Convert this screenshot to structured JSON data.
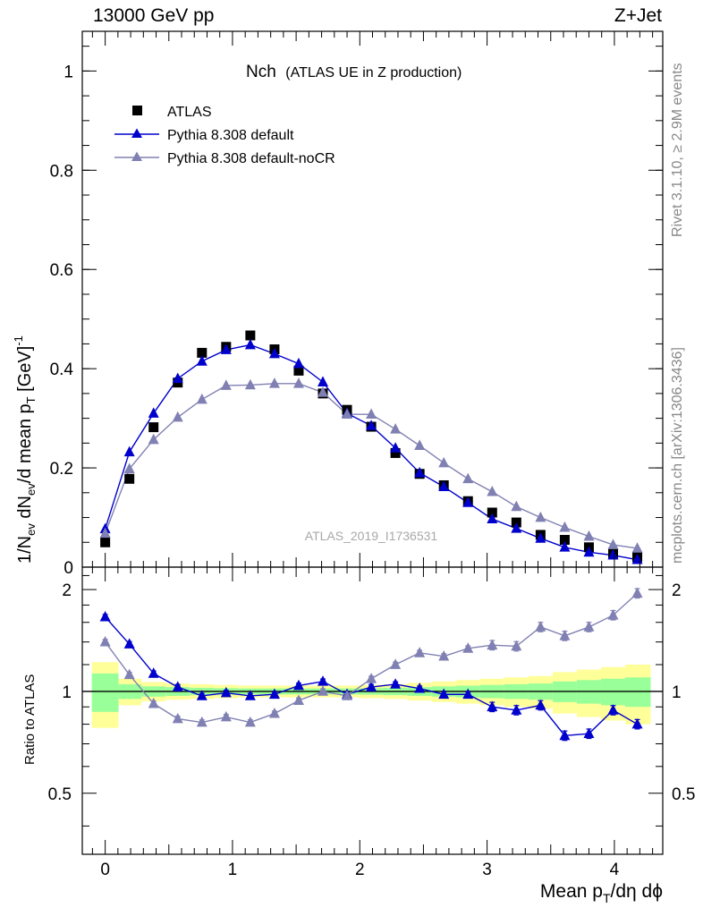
{
  "header": {
    "left": "13000 GeV pp",
    "right": "Z+Jet"
  },
  "side": {
    "rivet": "Rivet 3.1.10, ≥ 2.9M events",
    "mcplots": "mcplots.cern.ch [arXiv:1306.3436]"
  },
  "watermark": "ATLAS_2019_I1736531",
  "chart_data": [
    {
      "type": "scatter",
      "title": "Nch",
      "subtitle": "(ATLAS UE in Z production)",
      "xlabel": "Mean p_T/dη dϕ",
      "ylabel": "1/N_ev dN_ev/d mean p_T [GeV]^-1",
      "xlim": [
        -0.18,
        4.38
      ],
      "ylim": [
        0,
        1.08
      ],
      "yticks": [
        0,
        0.2,
        0.4,
        0.6,
        0.8,
        1
      ],
      "ytick_labels": [
        "0",
        "0.2",
        "0.4",
        "0.6",
        "0.8",
        "1"
      ],
      "legend_position": "top-left",
      "x": [
        0,
        0.19,
        0.38,
        0.57,
        0.76,
        0.95,
        1.14,
        1.33,
        1.52,
        1.71,
        1.9,
        2.09,
        2.28,
        2.47,
        2.66,
        2.85,
        3.04,
        3.23,
        3.42,
        3.61,
        3.8,
        3.99,
        4.18
      ],
      "series": [
        {
          "name": "ATLAS",
          "color": "#000000",
          "marker": "square",
          "values": [
            0.05,
            0.178,
            0.282,
            0.372,
            0.432,
            0.444,
            0.467,
            0.439,
            0.396,
            0.35,
            0.317,
            0.283,
            0.23,
            0.188,
            0.165,
            0.133,
            0.11,
            0.09,
            0.065,
            0.055,
            0.04,
            0.028,
            0.02
          ]
        },
        {
          "name": "Pythia 8.308 default",
          "color": "#0000cc",
          "marker": "triangle",
          "values": [
            0.077,
            0.232,
            0.31,
            0.38,
            0.415,
            0.438,
            0.448,
            0.43,
            0.41,
            0.373,
            0.31,
            0.285,
            0.24,
            0.19,
            0.162,
            0.13,
            0.097,
            0.078,
            0.058,
            0.04,
            0.03,
            0.024,
            0.015
          ]
        },
        {
          "name": "Pythia 8.308 default-noCR",
          "color": "#8080b3",
          "marker": "triangle",
          "values": [
            0.068,
            0.198,
            0.257,
            0.302,
            0.338,
            0.366,
            0.367,
            0.37,
            0.37,
            0.352,
            0.308,
            0.308,
            0.278,
            0.245,
            0.21,
            0.178,
            0.152,
            0.122,
            0.1,
            0.08,
            0.062,
            0.045,
            0.038
          ]
        }
      ]
    },
    {
      "type": "scatter",
      "ylabel": "Ratio to ATLAS",
      "xlabel": "Mean p_T/dη dϕ",
      "xlim": [
        -0.18,
        4.38
      ],
      "ylim": [
        0.33,
        2.33
      ],
      "yticks": [
        0.5,
        1,
        2
      ],
      "ytick_labels": [
        "0.5",
        "1",
        "2"
      ],
      "xticks": [
        0,
        1,
        2,
        3,
        4
      ],
      "xtick_labels": [
        "0",
        "1",
        "2",
        "3",
        "4"
      ],
      "bin_edges": [
        -0.105,
        0.105,
        0.285,
        0.475,
        0.665,
        0.855,
        1.045,
        1.235,
        1.425,
        1.615,
        1.805,
        1.995,
        2.185,
        2.375,
        2.565,
        2.755,
        2.945,
        3.135,
        3.325,
        3.515,
        3.705,
        3.895,
        4.085,
        4.285
      ],
      "band_green": [
        0.13,
        0.05,
        0.035,
        0.03,
        0.025,
        0.022,
        0.02,
        0.02,
        0.02,
        0.02,
        0.02,
        0.022,
        0.025,
        0.03,
        0.035,
        0.04,
        0.045,
        0.05,
        0.055,
        0.07,
        0.08,
        0.09,
        0.1
      ],
      "band_yellow": [
        0.22,
        0.09,
        0.065,
        0.055,
        0.05,
        0.045,
        0.04,
        0.04,
        0.04,
        0.04,
        0.04,
        0.045,
        0.05,
        0.06,
        0.07,
        0.08,
        0.09,
        0.1,
        0.11,
        0.14,
        0.16,
        0.18,
        0.2
      ],
      "series": [
        {
          "name": "Pythia 8.308 default",
          "color": "#0000cc",
          "values": [
            1.66,
            1.38,
            1.13,
            1.03,
            0.97,
            0.99,
            0.97,
            0.98,
            1.04,
            1.07,
            0.98,
            1.03,
            1.05,
            1.02,
            0.98,
            0.98,
            0.9,
            0.88,
            0.91,
            0.74,
            0.75,
            0.88,
            0.8
          ]
        },
        {
          "name": "Pythia 8.308 default-noCR",
          "color": "#8080b3",
          "values": [
            1.4,
            1.12,
            0.92,
            0.83,
            0.81,
            0.84,
            0.81,
            0.86,
            0.94,
            1.0,
            0.97,
            1.09,
            1.2,
            1.3,
            1.27,
            1.34,
            1.37,
            1.36,
            1.55,
            1.46,
            1.55,
            1.68,
            1.95
          ]
        }
      ]
    }
  ]
}
